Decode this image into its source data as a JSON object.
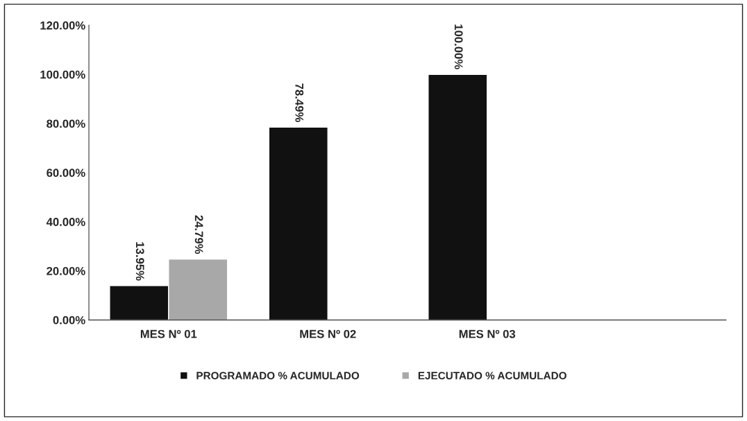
{
  "chart_data": {
    "type": "bar",
    "categories": [
      "MES Nº 01",
      "MES Nº 02",
      "MES Nº 03",
      null
    ],
    "series": [
      {
        "name": "PROGRAMADO % ACUMULADO",
        "color": "#111111",
        "values": [
          13.95,
          78.49,
          100.0,
          null
        ],
        "value_labels": [
          "13.95%",
          "78.49%",
          "100.00%",
          null
        ]
      },
      {
        "name": "EJECUTADO % ACUMULADO",
        "color": "#a8a8a8",
        "values": [
          24.79,
          null,
          null,
          null
        ],
        "value_labels": [
          "24.79%",
          null,
          null,
          null
        ]
      }
    ],
    "ylim": [
      0,
      120
    ],
    "yticks": [
      {
        "value": 0,
        "label": "0.00%"
      },
      {
        "value": 20,
        "label": "20.00%"
      },
      {
        "value": 40,
        "label": "40.00%"
      },
      {
        "value": 60,
        "label": "60.00%"
      },
      {
        "value": 80,
        "label": "80.00%"
      },
      {
        "value": 100,
        "label": "100.00%"
      },
      {
        "value": 120,
        "label": "120.00%"
      }
    ],
    "legend": "bottom",
    "grid": false
  }
}
